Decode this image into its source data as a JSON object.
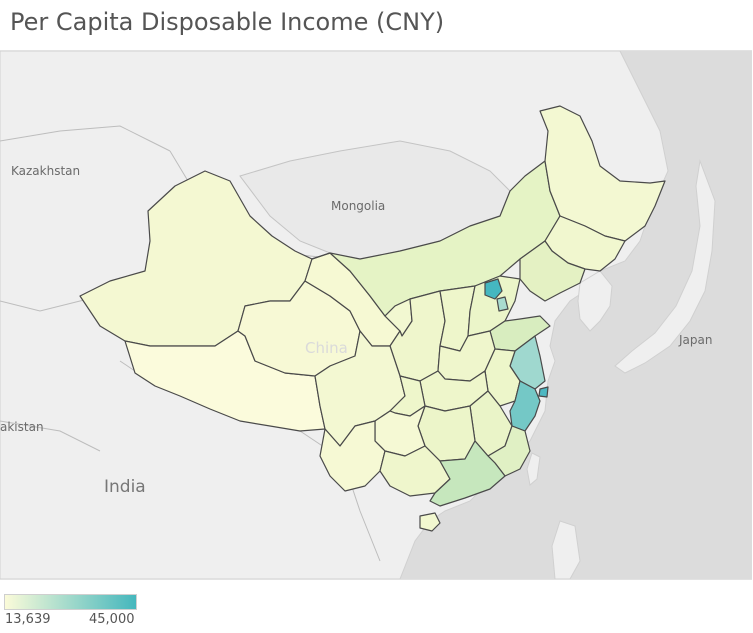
{
  "title": "Per Capita Disposable Income (CNY)",
  "map_labels": {
    "kazakhstan": "Kazakhstan",
    "mongolia": "Mongolia",
    "china": "China",
    "japan": "Japan",
    "india": "India",
    "pakistan_partial": "akistan"
  },
  "legend": {
    "min_label": "13,639",
    "max_label": "45,000",
    "color_low": "#fbfbd9",
    "color_high": "#45b7bd"
  },
  "colors": {
    "land": "#efefef",
    "water": "#dcdcdc",
    "border": "#bdbdbd",
    "province_border": "#4a4a4a",
    "label": "#6b6b6b"
  }
}
